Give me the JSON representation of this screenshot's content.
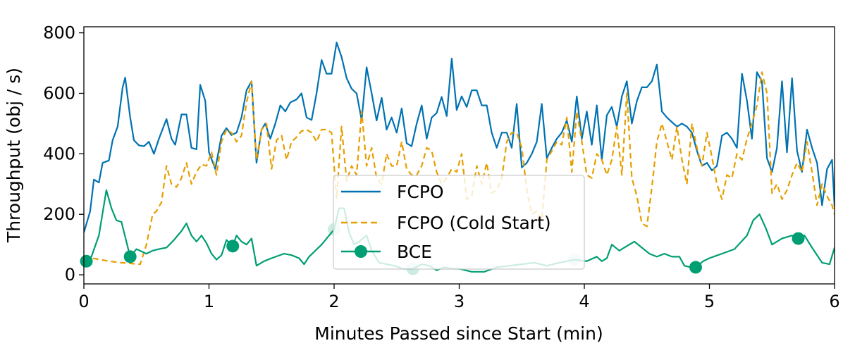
{
  "chart_data": {
    "type": "line",
    "title": "",
    "xlabel": "Minutes Passed since Start (min)",
    "ylabel": "Throughput (obj / s)",
    "xlim": [
      0,
      6
    ],
    "ylim": [
      -30,
      820
    ],
    "xticks": [
      0,
      1,
      2,
      3,
      4,
      5,
      6
    ],
    "yticks": [
      0,
      200,
      400,
      600,
      800
    ],
    "grid": false,
    "legend_position": "center",
    "series": [
      {
        "name": "FCPO",
        "color": "#0072B2",
        "style": "solid",
        "x": [
          0,
          0.05,
          0.08,
          0.12,
          0.15,
          0.2,
          0.23,
          0.27,
          0.31,
          0.33,
          0.37,
          0.4,
          0.44,
          0.48,
          0.52,
          0.56,
          0.6,
          0.66,
          0.7,
          0.73,
          0.78,
          0.82,
          0.86,
          0.9,
          0.93,
          0.97,
          1.0,
          1.05,
          1.1,
          1.14,
          1.18,
          1.22,
          1.26,
          1.3,
          1.34,
          1.38,
          1.42,
          1.45,
          1.49,
          1.53,
          1.57,
          1.61,
          1.65,
          1.7,
          1.74,
          1.78,
          1.82,
          1.86,
          1.9,
          1.94,
          1.98,
          2.02,
          2.06,
          2.1,
          2.14,
          2.18,
          2.22,
          2.26,
          2.3,
          2.34,
          2.38,
          2.42,
          2.46,
          2.5,
          2.54,
          2.58,
          2.62,
          2.66,
          2.7,
          2.74,
          2.78,
          2.82,
          2.86,
          2.9,
          2.94,
          2.98,
          3.02,
          3.06,
          3.1,
          3.14,
          3.18,
          3.22,
          3.26,
          3.3,
          3.34,
          3.38,
          3.42,
          3.46,
          3.5,
          3.54,
          3.58,
          3.62,
          3.66,
          3.7,
          3.74,
          3.78,
          3.82,
          3.86,
          3.9,
          3.94,
          3.98,
          4.02,
          4.06,
          4.1,
          4.14,
          4.18,
          4.22,
          4.26,
          4.3,
          4.34,
          4.38,
          4.42,
          4.46,
          4.5,
          4.54,
          4.58,
          4.62,
          4.66,
          4.7,
          4.74,
          4.78,
          4.82,
          4.86,
          4.9,
          4.94,
          4.98,
          5.02,
          5.06,
          5.1,
          5.14,
          5.18,
          5.22,
          5.26,
          5.3,
          5.34,
          5.38,
          5.42,
          5.46,
          5.5,
          5.54,
          5.58,
          5.62,
          5.66,
          5.7,
          5.74,
          5.78,
          5.82,
          5.86,
          5.9,
          5.94,
          5.98,
          6.0
        ],
        "y": [
          140,
          210,
          315,
          305,
          370,
          378,
          445,
          490,
          620,
          652,
          520,
          445,
          428,
          425,
          440,
          400,
          450,
          515,
          450,
          430,
          530,
          530,
          420,
          415,
          628,
          575,
          405,
          350,
          460,
          485,
          462,
          470,
          520,
          610,
          640,
          370,
          480,
          500,
          450,
          500,
          560,
          540,
          570,
          580,
          600,
          520,
          512,
          600,
          710,
          665,
          665,
          768,
          720,
          650,
          615,
          600,
          512,
          686,
          600,
          510,
          585,
          480,
          520,
          470,
          550,
          435,
          425,
          500,
          560,
          450,
          520,
          535,
          588,
          525,
          715,
          545,
          590,
          555,
          610,
          610,
          560,
          560,
          470,
          420,
          470,
          470,
          420,
          565,
          355,
          370,
          400,
          440,
          565,
          385,
          420,
          450,
          470,
          510,
          440,
          590,
          450,
          540,
          430,
          560,
          380,
          528,
          555,
          490,
          590,
          640,
          500,
          575,
          620,
          620,
          640,
          695,
          540,
          520,
          505,
          490,
          500,
          490,
          470,
          410,
          360,
          370,
          345,
          360,
          460,
          470,
          450,
          420,
          665,
          575,
          450,
          670,
          640,
          385,
          340,
          420,
          640,
          405,
          650,
          410,
          340,
          480,
          420,
          370,
          230,
          350,
          380,
          225
        ]
      },
      {
        "name": "FCPO (Cold Start)",
        "color": "#E69F00",
        "style": "dashed",
        "x": [
          0,
          0.2,
          0.3,
          0.45,
          0.5,
          0.55,
          0.58,
          0.62,
          0.66,
          0.7,
          0.74,
          0.78,
          0.82,
          0.86,
          0.9,
          0.94,
          0.98,
          1.02,
          1.06,
          1.1,
          1.14,
          1.18,
          1.22,
          1.26,
          1.3,
          1.34,
          1.38,
          1.42,
          1.46,
          1.5,
          1.54,
          1.58,
          1.62,
          1.66,
          1.7,
          1.74,
          1.78,
          1.82,
          1.86,
          1.9,
          1.94,
          1.98,
          2.02,
          2.06,
          2.1,
          2.14,
          2.18,
          2.22,
          2.26,
          2.3,
          2.34,
          2.38,
          2.42,
          2.46,
          2.5,
          2.54,
          2.58,
          2.62,
          2.66,
          2.7,
          2.74,
          2.78,
          2.82,
          2.86,
          2.9,
          2.94,
          2.98,
          3.02,
          3.06,
          3.1,
          3.14,
          3.18,
          3.22,
          3.26,
          3.3,
          3.34,
          3.38,
          3.42,
          3.46,
          3.5,
          3.54,
          3.58,
          3.62,
          3.66,
          3.7,
          3.74,
          3.78,
          3.82,
          3.86,
          3.9,
          3.94,
          3.98,
          4.02,
          4.06,
          4.1,
          4.14,
          4.18,
          4.22,
          4.26,
          4.3,
          4.34,
          4.38,
          4.42,
          4.46,
          4.5,
          4.54,
          4.58,
          4.62,
          4.66,
          4.7,
          4.74,
          4.78,
          4.82,
          4.86,
          4.9,
          4.94,
          4.98,
          5.02,
          5.06,
          5.1,
          5.14,
          5.18,
          5.22,
          5.26,
          5.3,
          5.34,
          5.38,
          5.42,
          5.46,
          5.5,
          5.54,
          5.58,
          5.62,
          5.66,
          5.7,
          5.74,
          5.78,
          5.82,
          5.86,
          5.9,
          5.94,
          5.98,
          6.0
        ],
        "y": [
          60,
          45,
          40,
          35,
          100,
          200,
          210,
          240,
          360,
          300,
          290,
          320,
          370,
          300,
          340,
          365,
          360,
          405,
          330,
          440,
          480,
          470,
          440,
          460,
          570,
          640,
          380,
          480,
          500,
          350,
          445,
          460,
          380,
          440,
          455,
          475,
          480,
          470,
          440,
          480,
          480,
          470,
          250,
          490,
          310,
          360,
          330,
          540,
          360,
          420,
          320,
          300,
          400,
          360,
          360,
          440,
          350,
          330,
          330,
          360,
          420,
          410,
          340,
          300,
          320,
          350,
          340,
          400,
          250,
          260,
          360,
          300,
          370,
          270,
          280,
          320,
          440,
          470,
          470,
          420,
          280,
          200,
          210,
          180,
          380,
          410,
          440,
          430,
          520,
          340,
          540,
          440,
          330,
          320,
          400,
          380,
          330,
          380,
          490,
          330,
          600,
          320,
          260,
          170,
          160,
          290,
          440,
          500,
          440,
          380,
          490,
          380,
          300,
          500,
          420,
          360,
          470,
          390,
          300,
          250,
          330,
          320,
          400,
          380,
          450,
          500,
          560,
          670,
          600,
          270,
          300,
          250,
          280,
          330,
          370,
          340,
          440,
          340,
          230,
          300,
          260,
          230,
          200
        ]
      },
      {
        "name": "BCE",
        "color": "#009E73",
        "style": "solid",
        "x": [
          0,
          0.06,
          0.12,
          0.18,
          0.22,
          0.26,
          0.3,
          0.37,
          0.42,
          0.5,
          0.55,
          0.6,
          0.66,
          0.72,
          0.78,
          0.82,
          0.86,
          0.9,
          0.94,
          0.98,
          1.02,
          1.06,
          1.1,
          1.14,
          1.19,
          1.22,
          1.26,
          1.3,
          1.34,
          1.38,
          1.44,
          1.5,
          1.6,
          1.66,
          1.72,
          1.76,
          1.8,
          1.9,
          2.0,
          2.04,
          2.08,
          2.12,
          2.16,
          2.2,
          2.26,
          2.3,
          2.36,
          2.42,
          2.48,
          2.55,
          2.63,
          2.7,
          2.76,
          2.82,
          2.88,
          2.94,
          3.0,
          3.1,
          3.2,
          3.3,
          3.4,
          3.5,
          3.6,
          3.7,
          3.8,
          3.92,
          4.02,
          4.1,
          4.14,
          4.18,
          4.22,
          4.28,
          4.34,
          4.4,
          4.46,
          4.52,
          4.58,
          4.64,
          4.7,
          4.76,
          4.8,
          4.85,
          4.89,
          4.95,
          5.0,
          5.1,
          5.2,
          5.3,
          5.35,
          5.4,
          5.45,
          5.5,
          5.58,
          5.66,
          5.71,
          5.76,
          5.82,
          5.9,
          5.96,
          6.0
        ],
        "y": [
          45,
          60,
          130,
          280,
          220,
          180,
          175,
          60,
          85,
          70,
          80,
          85,
          90,
          115,
          145,
          170,
          130,
          110,
          130,
          105,
          70,
          50,
          65,
          115,
          95,
          130,
          110,
          100,
          120,
          30,
          45,
          55,
          70,
          65,
          55,
          35,
          60,
          100,
          150,
          220,
          220,
          140,
          100,
          110,
          130,
          80,
          40,
          35,
          30,
          20,
          20,
          35,
          30,
          15,
          25,
          20,
          20,
          10,
          10,
          25,
          30,
          35,
          40,
          30,
          40,
          50,
          45,
          60,
          45,
          55,
          100,
          80,
          95,
          110,
          90,
          70,
          60,
          70,
          60,
          60,
          30,
          25,
          25,
          45,
          55,
          70,
          85,
          130,
          180,
          200,
          155,
          100,
          120,
          130,
          120,
          130,
          90,
          40,
          35,
          90
        ]
      }
    ],
    "markers": [
      {
        "series": "BCE",
        "x": 0.02,
        "y": 45,
        "faded": false
      },
      {
        "series": "BCE",
        "x": 0.37,
        "y": 60,
        "faded": false
      },
      {
        "series": "BCE",
        "x": 1.19,
        "y": 95,
        "faded": false
      },
      {
        "series": "BCE",
        "x": 2.0,
        "y": 150,
        "faded": true
      },
      {
        "series": "BCE",
        "x": 2.63,
        "y": 20,
        "faded": true
      },
      {
        "series": "BCE",
        "x": 3.92,
        "y": 50,
        "faded": true
      },
      {
        "series": "BCE",
        "x": 4.89,
        "y": 25,
        "faded": false
      },
      {
        "series": "BCE",
        "x": 5.71,
        "y": 120,
        "faded": false
      }
    ]
  }
}
